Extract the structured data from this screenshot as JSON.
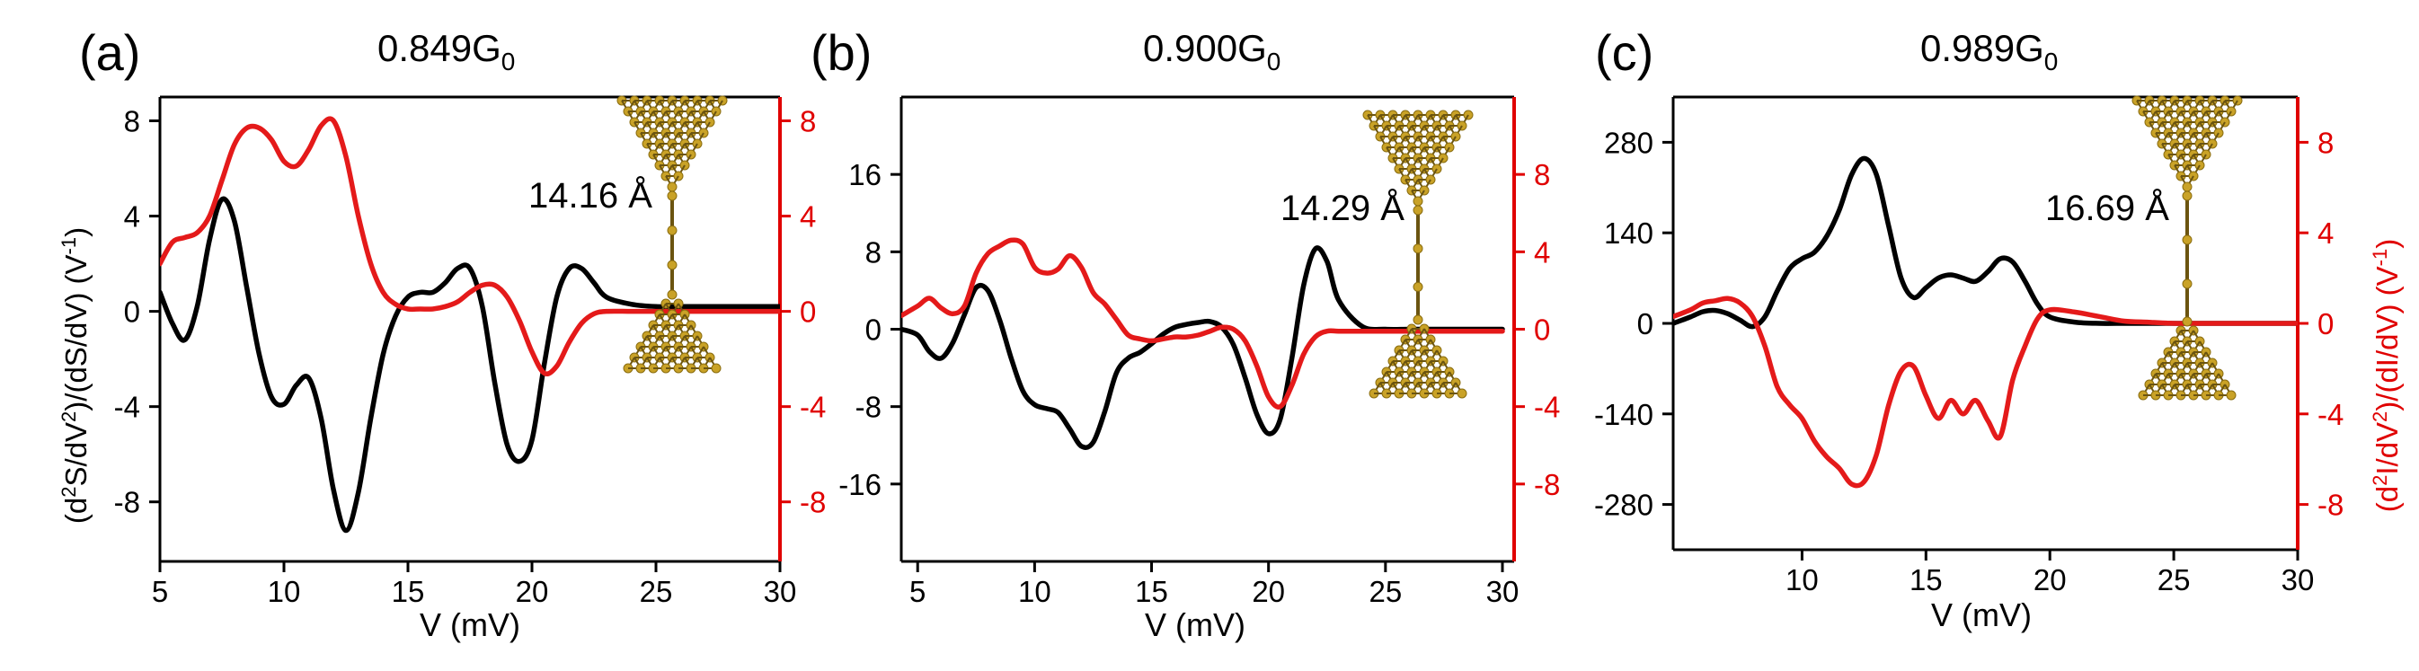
{
  "figure": {
    "colors": {
      "black_series": "#000000",
      "red_series": "#e41a1a",
      "axis": "#000000",
      "red_axis": "#e00000",
      "gold": "#c9a227"
    },
    "y_left_label": [
      "(d",
      "2",
      "S/dV",
      "2",
      ")/(dS/dV) (V",
      "-1",
      ")"
    ],
    "y_right_label": [
      "(d",
      "2",
      "I/dV",
      "2",
      ")/(dI/dV) (V",
      "-1",
      ")"
    ]
  },
  "chart_data": [
    {
      "type": "line",
      "panel_label": "(a)",
      "title_main": "0.849G",
      "title_sub": "0",
      "annotation": "14.16 Å",
      "xlabel": "V (mV)",
      "xlim": [
        5,
        30
      ],
      "x_ticks": [
        5,
        10,
        15,
        20,
        25,
        30
      ],
      "y_left_lim": [
        -10.5,
        9
      ],
      "y_left_ticks": [
        -8,
        -4,
        0,
        4,
        8
      ],
      "y_right_lim": [
        -10.5,
        9
      ],
      "y_right_ticks": [
        -8,
        -4,
        0,
        4,
        8
      ],
      "series": [
        {
          "name": "d2S/dV2 / dS/dV",
          "axis": "left",
          "color": "black",
          "x": [
            5,
            5.5,
            6,
            6.5,
            7,
            7.5,
            8,
            8.5,
            9,
            9.5,
            10,
            10.5,
            11,
            11.5,
            12,
            12.5,
            13,
            13.5,
            14,
            14.5,
            15,
            15.5,
            16,
            16.5,
            17,
            17.5,
            18,
            18.5,
            19,
            19.5,
            20,
            20.5,
            21,
            21.5,
            22,
            22.5,
            23,
            24,
            25,
            26,
            27,
            28,
            29,
            30
          ],
          "y": [
            0.8,
            -0.5,
            -1.2,
            0.2,
            3.0,
            4.7,
            3.8,
            1.0,
            -1.8,
            -3.6,
            -3.9,
            -3.1,
            -2.8,
            -4.5,
            -7.5,
            -9.2,
            -7.6,
            -4.5,
            -1.8,
            -0.2,
            0.6,
            0.8,
            0.8,
            1.2,
            1.8,
            1.8,
            0.2,
            -3.0,
            -5.6,
            -6.3,
            -5.4,
            -2.2,
            0.6,
            1.8,
            1.8,
            1.2,
            0.6,
            0.3,
            0.2,
            0.2,
            0.2,
            0.2,
            0.2,
            0.2
          ]
        },
        {
          "name": "d2I/dV2 / dI/dV",
          "axis": "right",
          "color": "red",
          "x": [
            5,
            5.5,
            6,
            6.5,
            7,
            7.5,
            8,
            8.5,
            9,
            9.5,
            10,
            10.5,
            11,
            11.5,
            12,
            12.5,
            13,
            13.5,
            14,
            14.5,
            15,
            15.5,
            16,
            16.5,
            17,
            17.5,
            18,
            18.5,
            19,
            19.5,
            20,
            20.5,
            21,
            21.5,
            22,
            22.5,
            23,
            24,
            25,
            26,
            27,
            28,
            29,
            30
          ],
          "y": [
            2.0,
            2.9,
            3.1,
            3.3,
            4.0,
            5.5,
            7.0,
            7.7,
            7.7,
            7.2,
            6.3,
            6.1,
            6.8,
            7.8,
            8.0,
            6.5,
            4.0,
            2.0,
            0.8,
            0.3,
            0.1,
            0.1,
            0.1,
            0.2,
            0.4,
            0.8,
            1.1,
            1.1,
            0.6,
            -0.4,
            -1.7,
            -2.6,
            -2.3,
            -1.3,
            -0.5,
            -0.1,
            0,
            0,
            0,
            0,
            0,
            0,
            0,
            0
          ]
        }
      ]
    },
    {
      "type": "line",
      "panel_label": "(b)",
      "title_main": "0.900G",
      "title_sub": "0",
      "annotation": "14.29 Å",
      "xlabel": "V (mV)",
      "xlim": [
        4.3,
        30.5
      ],
      "x_ticks": [
        5,
        10,
        15,
        20,
        25,
        30
      ],
      "y_left_lim": [
        -24,
        24
      ],
      "y_left_ticks": [
        -16,
        -8,
        0,
        8,
        16
      ],
      "y_right_lim": [
        -12,
        12
      ],
      "y_right_ticks": [
        -8,
        -4,
        0,
        4,
        8
      ],
      "series": [
        {
          "name": "d2S/dV2 / dS/dV",
          "axis": "left",
          "color": "black",
          "x": [
            4.3,
            5,
            5.5,
            6,
            6.5,
            7,
            7.5,
            8,
            8.5,
            9,
            9.5,
            10,
            10.5,
            11,
            11.5,
            12,
            12.5,
            13,
            13.5,
            14,
            14.5,
            15,
            15.5,
            16,
            16.5,
            17,
            17.5,
            18,
            18.5,
            19,
            19.5,
            20,
            20.5,
            21,
            21.5,
            22,
            22.5,
            23,
            24,
            25,
            26,
            27,
            28,
            29,
            30
          ],
          "y": [
            0,
            -0.6,
            -2.3,
            -3.0,
            -1.4,
            1.5,
            4.3,
            4.0,
            1.0,
            -3.0,
            -6.4,
            -7.8,
            -8.2,
            -8.6,
            -10.3,
            -12.1,
            -11.7,
            -8.5,
            -4.5,
            -3.0,
            -2.4,
            -1.5,
            -0.5,
            0.2,
            0.5,
            0.7,
            0.8,
            0.2,
            -1.6,
            -5.0,
            -8.8,
            -10.8,
            -9.3,
            -3.0,
            4.5,
            8.3,
            7.0,
            3.0,
            0.3,
            0,
            0,
            0,
            0,
            0,
            0
          ]
        },
        {
          "name": "d2I/dV2 / dI/dV",
          "axis": "right",
          "color": "red",
          "x": [
            4.3,
            5,
            5.5,
            6,
            6.5,
            7,
            7.5,
            8,
            8.5,
            9,
            9.5,
            10,
            10.5,
            11,
            11.5,
            12,
            12.5,
            13,
            13.5,
            14,
            14.5,
            15,
            15.5,
            16,
            16.5,
            17,
            17.5,
            18,
            18.5,
            19,
            19.5,
            20,
            20.5,
            21,
            21.5,
            22,
            22.5,
            23,
            24,
            25,
            26,
            27,
            28,
            29,
            30
          ],
          "y": [
            0.7,
            1.2,
            1.6,
            1.1,
            0.8,
            1.2,
            2.9,
            3.9,
            4.3,
            4.6,
            4.4,
            3.2,
            2.9,
            3.1,
            3.8,
            3.2,
            1.9,
            1.3,
            0.5,
            -0.3,
            -0.5,
            -0.6,
            -0.5,
            -0.4,
            -0.4,
            -0.3,
            -0.1,
            0.1,
            0.0,
            -0.6,
            -1.9,
            -3.5,
            -4.0,
            -2.9,
            -1.3,
            -0.4,
            -0.1,
            -0.1,
            -0.1,
            -0.1,
            -0.1,
            -0.1,
            -0.1,
            -0.1,
            -0.1
          ]
        }
      ]
    },
    {
      "type": "line",
      "panel_label": "(c)",
      "title_main": "0.989G",
      "title_sub": "0",
      "annotation": "16.69 Å",
      "xlabel": "V (mV)",
      "xlim": [
        4.8,
        30
      ],
      "x_ticks": [
        10,
        15,
        20,
        25,
        30
      ],
      "y_left_lim": [
        -350,
        350
      ],
      "y_left_ticks": [
        -280,
        -140,
        0,
        140,
        280
      ],
      "y_right_lim": [
        -10,
        10
      ],
      "y_right_ticks": [
        -8,
        -4,
        0,
        4,
        8
      ],
      "series": [
        {
          "name": "d2S/dV2 / dS/dV",
          "axis": "left",
          "color": "black",
          "x": [
            4.8,
            5.5,
            6,
            6.5,
            7,
            7.5,
            8,
            8.5,
            9,
            9.5,
            10,
            10.5,
            11,
            11.5,
            12,
            12.5,
            13,
            13.5,
            14,
            14.5,
            15,
            15.5,
            16,
            16.5,
            17,
            17.5,
            18,
            18.5,
            19,
            19.5,
            20,
            21,
            22,
            23,
            24,
            25,
            26,
            27,
            28,
            29,
            30
          ],
          "y": [
            0,
            10,
            18,
            20,
            15,
            5,
            -5,
            10,
            50,
            85,
            100,
            110,
            135,
            175,
            230,
            255,
            230,
            150,
            70,
            40,
            55,
            70,
            75,
            70,
            65,
            80,
            100,
            95,
            65,
            30,
            10,
            2,
            0,
            0,
            0,
            0,
            0,
            0,
            0,
            0,
            0
          ]
        },
        {
          "name": "d2I/dV2 / dI/dV",
          "axis": "right",
          "color": "red",
          "x": [
            4.8,
            5.5,
            6,
            6.5,
            7,
            7.5,
            8,
            8.5,
            9,
            9.5,
            10,
            10.5,
            11,
            11.5,
            12,
            12.5,
            13,
            13.5,
            14,
            14.5,
            15,
            15.5,
            16,
            16.5,
            17,
            17.5,
            18,
            18.5,
            19,
            19.5,
            20,
            21,
            22,
            23,
            24,
            25,
            26,
            27,
            28,
            29,
            30
          ],
          "y": [
            0.3,
            0.6,
            0.9,
            1.0,
            1.1,
            0.9,
            0.3,
            -1.0,
            -2.8,
            -3.6,
            -4.2,
            -5.2,
            -5.9,
            -6.4,
            -7.1,
            -7.0,
            -5.8,
            -3.6,
            -2.1,
            -1.9,
            -3.2,
            -4.2,
            -3.4,
            -4.0,
            -3.4,
            -4.3,
            -5.0,
            -2.5,
            -1.0,
            0.2,
            0.6,
            0.5,
            0.3,
            0.1,
            0.05,
            0,
            0,
            0,
            0,
            0,
            0
          ]
        }
      ]
    }
  ]
}
